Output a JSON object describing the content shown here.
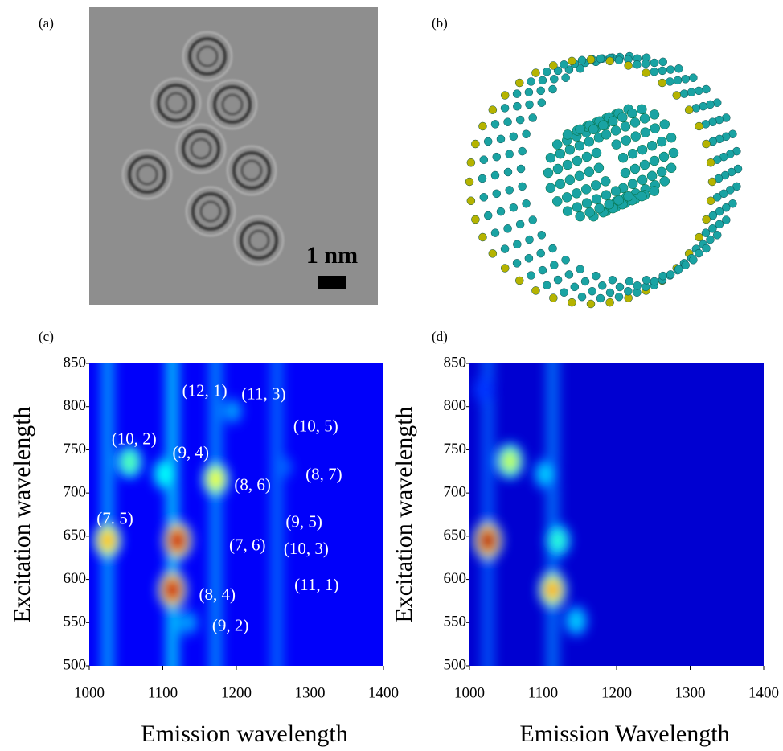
{
  "panel_labels": [
    "(a)",
    "(b)",
    "(c)",
    "(d)"
  ],
  "scale_bar": "1 nm",
  "chart_data": [
    {
      "type": "heatmap",
      "colormap": "jet",
      "background_level": 0.12,
      "xlabel": "Emission wavelength",
      "ylabel": "Excitation wavelength",
      "xlim": [
        1000,
        1400
      ],
      "ylim": [
        500,
        850
      ],
      "xticks": [
        1000,
        1100,
        1200,
        1300,
        1400
      ],
      "yticks": [
        500,
        550,
        600,
        650,
        700,
        750,
        800,
        850
      ],
      "streaks": [
        {
          "x": 1025,
          "intensity": 0.3
        },
        {
          "x": 1113,
          "intensity": 0.35
        },
        {
          "x": 1172,
          "intensity": 0.28
        },
        {
          "x": 1255,
          "intensity": 0.24
        }
      ],
      "spots": [
        {
          "x": 1025,
          "y": 645,
          "intensity": 0.75
        },
        {
          "x": 1113,
          "y": 588,
          "intensity": 1.0
        },
        {
          "x": 1120,
          "y": 645,
          "intensity": 1.0
        },
        {
          "x": 1172,
          "y": 716,
          "intensity": 0.65
        },
        {
          "x": 1055,
          "y": 736,
          "intensity": 0.5
        },
        {
          "x": 1103,
          "y": 722,
          "intensity": 0.45
        },
        {
          "x": 1195,
          "y": 795,
          "intensity": 0.3
        },
        {
          "x": 1135,
          "y": 550,
          "intensity": 0.3
        },
        {
          "x": 1265,
          "y": 730,
          "intensity": 0.25
        },
        {
          "x": 1255,
          "y": 668,
          "intensity": 0.2
        }
      ],
      "annotations": [
        {
          "text": "(12, 1)",
          "x": 1157,
          "y": 817
        },
        {
          "text": "(11, 3)",
          "x": 1237,
          "y": 813
        },
        {
          "text": "(10, 5)",
          "x": 1308,
          "y": 776
        },
        {
          "text": "(10, 2)",
          "x": 1061,
          "y": 761
        },
        {
          "text": "(9, 4)",
          "x": 1138,
          "y": 745
        },
        {
          "text": "(8, 7)",
          "x": 1319,
          "y": 720
        },
        {
          "text": "(8, 6)",
          "x": 1222,
          "y": 708
        },
        {
          "text": "(7. 5)",
          "x": 1035,
          "y": 669
        },
        {
          "text": "(9, 5)",
          "x": 1292,
          "y": 665
        },
        {
          "text": "(7, 6)",
          "x": 1215,
          "y": 638
        },
        {
          "text": "(10, 3)",
          "x": 1295,
          "y": 634
        },
        {
          "text": "(11, 1)",
          "x": 1309,
          "y": 592
        },
        {
          "text": "(8, 4)",
          "x": 1174,
          "y": 581
        },
        {
          "text": "(9, 2)",
          "x": 1192,
          "y": 545
        }
      ]
    },
    {
      "type": "heatmap",
      "colormap": "jet",
      "background_level": 0.08,
      "xlabel": "Emission Wavelength",
      "ylabel": "Excitation wavelength",
      "xlim": [
        1000,
        1400
      ],
      "ylim": [
        500,
        850
      ],
      "xticks": [
        1000,
        1100,
        1200,
        1300,
        1400
      ],
      "yticks": [
        500,
        550,
        600,
        650,
        700,
        750,
        800,
        850
      ],
      "streaks": [
        {
          "x": 1025,
          "intensity": 0.22
        },
        {
          "x": 1113,
          "intensity": 0.25
        }
      ],
      "spots": [
        {
          "x": 1025,
          "y": 645,
          "intensity": 1.0
        },
        {
          "x": 1055,
          "y": 737,
          "intensity": 0.6
        },
        {
          "x": 1113,
          "y": 588,
          "intensity": 0.75
        },
        {
          "x": 1120,
          "y": 645,
          "intensity": 0.45
        },
        {
          "x": 1103,
          "y": 722,
          "intensity": 0.35
        },
        {
          "x": 1145,
          "y": 552,
          "intensity": 0.35
        },
        {
          "x": 1020,
          "y": 820,
          "intensity": 0.25
        },
        {
          "x": 1175,
          "y": 720,
          "intensity": 0.15
        }
      ],
      "annotations": []
    }
  ]
}
